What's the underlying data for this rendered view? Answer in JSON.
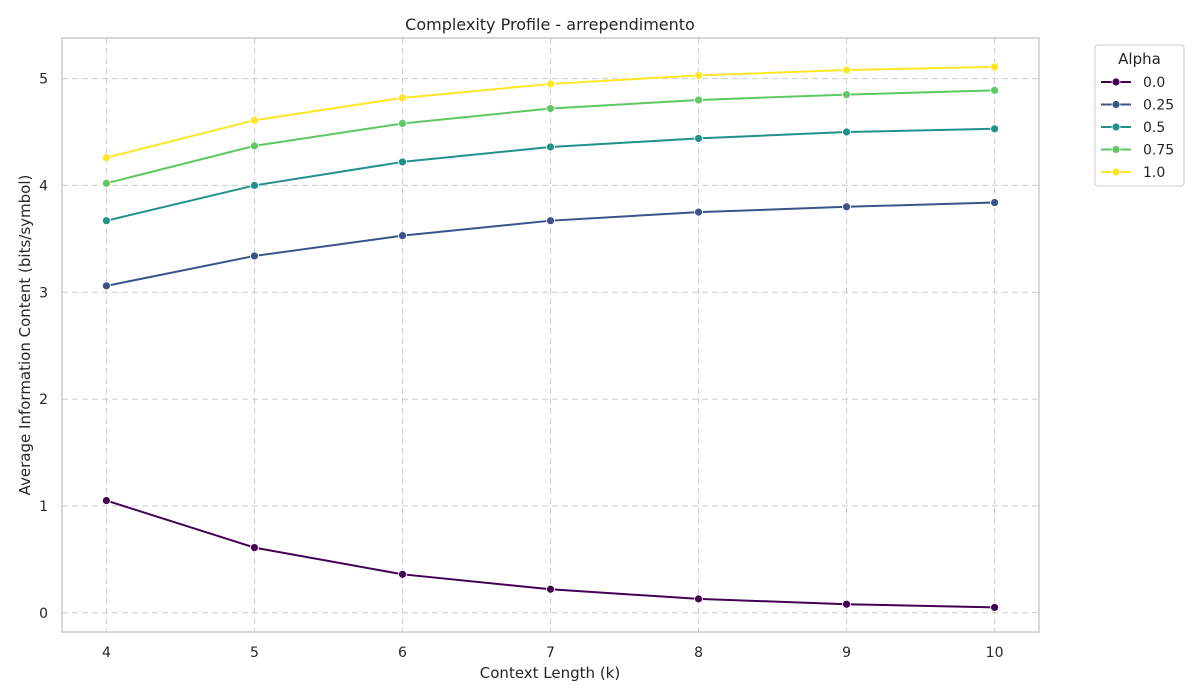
{
  "chart_data": {
    "type": "line",
    "title": "Complexity Profile - arrependimento",
    "xlabel": "Context Length (k)",
    "ylabel": "Average Information Content (bits/symbol)",
    "x": [
      4,
      5,
      6,
      7,
      8,
      9,
      10
    ],
    "xlim": [
      3.7,
      10.3
    ],
    "ylim": [
      -0.18,
      5.38
    ],
    "x_ticks": [
      "4",
      "5",
      "6",
      "7",
      "8",
      "9",
      "10"
    ],
    "y_ticks": [
      "0",
      "1",
      "2",
      "3",
      "4",
      "5"
    ],
    "grid": true,
    "legend": {
      "title": "Alpha",
      "placement": "outside-top-right"
    },
    "series": [
      {
        "name": "0.0",
        "color": "#440154",
        "values": [
          1.05,
          0.61,
          0.36,
          0.22,
          0.13,
          0.08,
          0.05
        ]
      },
      {
        "name": "0.25",
        "color": "#3b528b",
        "values": [
          3.06,
          3.34,
          3.53,
          3.67,
          3.75,
          3.8,
          3.84
        ]
      },
      {
        "name": "0.5",
        "color": "#21918c",
        "values": [
          3.67,
          4.0,
          4.22,
          4.36,
          4.44,
          4.5,
          4.53
        ]
      },
      {
        "name": "0.75",
        "color": "#5ec962",
        "values": [
          4.02,
          4.37,
          4.58,
          4.72,
          4.8,
          4.85,
          4.89
        ]
      },
      {
        "name": "1.0",
        "color": "#fde725",
        "values": [
          4.26,
          4.61,
          4.82,
          4.95,
          5.03,
          5.08,
          5.11
        ]
      }
    ]
  }
}
